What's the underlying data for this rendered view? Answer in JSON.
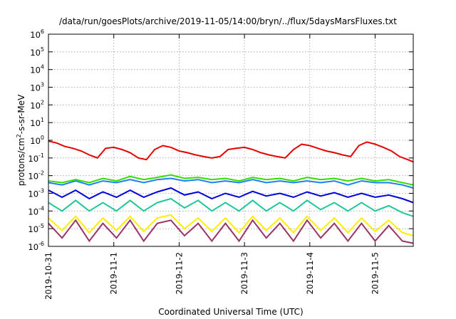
{
  "chart_data": {
    "type": "line",
    "title": "/data/run/goesPlots/archive/2019-11-05/14:00/bryn/../flux/5daysMarsFluxes.txt",
    "xlabel": "Coordinated Universal Time (UTC)",
    "ylabel": {
      "base": "protons/cm",
      "sup": "2",
      "rest": "-s-sr-MeV"
    },
    "y_scale": "log",
    "ylim": [
      1e-06,
      1000000.0
    ],
    "xlim": [
      "2019-10-31T00:00",
      "2019-11-05T14:00"
    ],
    "grid": true,
    "legend": "none",
    "x_ticks": [
      {
        "value": "2019-10-31",
        "label": "2019-10-31"
      },
      {
        "value": "2019-11-01",
        "label": "2019-11-1"
      },
      {
        "value": "2019-11-02",
        "label": "2019-11-2"
      },
      {
        "value": "2019-11-03",
        "label": "2019-11-3"
      },
      {
        "value": "2019-11-04",
        "label": "2019-11-4"
      },
      {
        "value": "2019-11-05",
        "label": "2019-11-5"
      }
    ],
    "y_ticks": [
      {
        "exp": -6,
        "base": "10",
        "sup": "-6"
      },
      {
        "exp": -5,
        "base": "10",
        "sup": "-5"
      },
      {
        "exp": -4,
        "base": "10",
        "sup": "-4"
      },
      {
        "exp": -3,
        "base": "10",
        "sup": "-3"
      },
      {
        "exp": -2,
        "base": "10",
        "sup": "-2"
      },
      {
        "exp": -1,
        "base": "10",
        "sup": "-1"
      },
      {
        "exp": 0,
        "base": "10",
        "sup": "0"
      },
      {
        "exp": 1,
        "base": "10",
        "sup": "1"
      },
      {
        "exp": 2,
        "base": "10",
        "sup": "2"
      },
      {
        "exp": 3,
        "base": "10",
        "sup": "3"
      },
      {
        "exp": 4,
        "base": "10",
        "sup": "4"
      },
      {
        "exp": 5,
        "base": "10",
        "sup": "5"
      },
      {
        "exp": 6,
        "base": "10",
        "sup": "6"
      }
    ],
    "series": [
      {
        "color": "#e50000",
        "x": [
          "2019-10-31T00:00",
          "2019-10-31T03:00",
          "2019-10-31T06:00",
          "2019-10-31T09:00",
          "2019-10-31T12:00",
          "2019-10-31T15:00",
          "2019-10-31T18:00",
          "2019-10-31T21:00",
          "2019-11-01T00:00",
          "2019-11-01T03:00",
          "2019-11-01T06:00",
          "2019-11-01T09:00",
          "2019-11-01T12:00",
          "2019-11-01T15:00",
          "2019-11-01T18:00",
          "2019-11-01T21:00",
          "2019-11-02T00:00",
          "2019-11-02T03:00",
          "2019-11-02T06:00",
          "2019-11-02T09:00",
          "2019-11-02T12:00",
          "2019-11-02T15:00",
          "2019-11-02T18:00",
          "2019-11-02T21:00",
          "2019-11-03T00:00",
          "2019-11-03T03:00",
          "2019-11-03T06:00",
          "2019-11-03T09:00",
          "2019-11-03T12:00",
          "2019-11-03T15:00",
          "2019-11-03T18:00",
          "2019-11-03T21:00",
          "2019-11-04T00:00",
          "2019-11-04T03:00",
          "2019-11-04T06:00",
          "2019-11-04T09:00",
          "2019-11-04T12:00",
          "2019-11-04T15:00",
          "2019-11-04T18:00",
          "2019-11-04T21:00",
          "2019-11-05T00:00",
          "2019-11-05T03:00",
          "2019-11-05T06:00",
          "2019-11-05T09:00",
          "2019-11-05T12:00",
          "2019-11-05T14:00"
        ],
        "y": [
          0.9,
          0.7,
          0.45,
          0.35,
          0.25,
          0.15,
          0.1,
          0.35,
          0.4,
          0.3,
          0.2,
          0.1,
          0.08,
          0.3,
          0.5,
          0.4,
          0.25,
          0.2,
          0.15,
          0.12,
          0.1,
          0.12,
          0.3,
          0.35,
          0.4,
          0.3,
          0.2,
          0.15,
          0.12,
          0.1,
          0.3,
          0.6,
          0.5,
          0.35,
          0.25,
          0.2,
          0.15,
          0.12,
          0.5,
          0.8,
          0.6,
          0.4,
          0.25,
          0.12,
          0.08,
          0.06
        ]
      },
      {
        "color": "#33dd00",
        "x": [
          "2019-10-31T00:00",
          "2019-10-31T05:00",
          "2019-10-31T10:00",
          "2019-10-31T15:00",
          "2019-10-31T20:00",
          "2019-11-01T01:00",
          "2019-11-01T06:00",
          "2019-11-01T11:00",
          "2019-11-01T16:00",
          "2019-11-01T21:00",
          "2019-11-02T02:00",
          "2019-11-02T07:00",
          "2019-11-02T12:00",
          "2019-11-02T17:00",
          "2019-11-02T22:00",
          "2019-11-03T03:00",
          "2019-11-03T08:00",
          "2019-11-03T13:00",
          "2019-11-03T18:00",
          "2019-11-03T23:00",
          "2019-11-04T04:00",
          "2019-11-04T09:00",
          "2019-11-04T14:00",
          "2019-11-04T19:00",
          "2019-11-05T00:00",
          "2019-11-05T05:00",
          "2019-11-05T10:00",
          "2019-11-05T14:00"
        ],
        "y": [
          0.005,
          0.004,
          0.006,
          0.004,
          0.007,
          0.005,
          0.009,
          0.006,
          0.008,
          0.011,
          0.007,
          0.008,
          0.006,
          0.007,
          0.005,
          0.008,
          0.006,
          0.007,
          0.005,
          0.008,
          0.006,
          0.007,
          0.005,
          0.007,
          0.005,
          0.006,
          0.004,
          0.003
        ]
      },
      {
        "color": "#1a7fff",
        "x": [
          "2019-10-31T00:00",
          "2019-10-31T05:00",
          "2019-10-31T10:00",
          "2019-10-31T15:00",
          "2019-10-31T20:00",
          "2019-11-01T01:00",
          "2019-11-01T06:00",
          "2019-11-01T11:00",
          "2019-11-01T16:00",
          "2019-11-01T21:00",
          "2019-11-02T02:00",
          "2019-11-02T07:00",
          "2019-11-02T12:00",
          "2019-11-02T17:00",
          "2019-11-02T22:00",
          "2019-11-03T03:00",
          "2019-11-03T08:00",
          "2019-11-03T13:00",
          "2019-11-03T18:00",
          "2019-11-03T23:00",
          "2019-11-04T04:00",
          "2019-11-04T09:00",
          "2019-11-04T14:00",
          "2019-11-04T19:00",
          "2019-11-05T00:00",
          "2019-11-05T05:00",
          "2019-11-05T10:00",
          "2019-11-05T14:00"
        ],
        "y": [
          0.004,
          0.003,
          0.005,
          0.003,
          0.005,
          0.004,
          0.006,
          0.004,
          0.006,
          0.007,
          0.005,
          0.006,
          0.004,
          0.005,
          0.004,
          0.006,
          0.004,
          0.005,
          0.004,
          0.005,
          0.004,
          0.005,
          0.003,
          0.005,
          0.004,
          0.004,
          0.003,
          0.002
        ]
      },
      {
        "color": "#0000dd",
        "x": [
          "2019-10-31T00:00",
          "2019-10-31T05:00",
          "2019-10-31T10:00",
          "2019-10-31T15:00",
          "2019-10-31T20:00",
          "2019-11-01T01:00",
          "2019-11-01T06:00",
          "2019-11-01T11:00",
          "2019-11-01T16:00",
          "2019-11-01T21:00",
          "2019-11-02T02:00",
          "2019-11-02T07:00",
          "2019-11-02T12:00",
          "2019-11-02T17:00",
          "2019-11-02T22:00",
          "2019-11-03T03:00",
          "2019-11-03T08:00",
          "2019-11-03T13:00",
          "2019-11-03T18:00",
          "2019-11-03T23:00",
          "2019-11-04T04:00",
          "2019-11-04T09:00",
          "2019-11-04T14:00",
          "2019-11-04T19:00",
          "2019-11-05T00:00",
          "2019-11-05T05:00",
          "2019-11-05T10:00",
          "2019-11-05T14:00"
        ],
        "y": [
          0.0015,
          0.0006,
          0.0015,
          0.0005,
          0.0012,
          0.0006,
          0.0015,
          0.0006,
          0.0012,
          0.002,
          0.0008,
          0.0012,
          0.0005,
          0.001,
          0.0006,
          0.0013,
          0.0007,
          0.001,
          0.0006,
          0.0012,
          0.0007,
          0.0011,
          0.0006,
          0.001,
          0.0006,
          0.0008,
          0.0005,
          0.0003
        ]
      },
      {
        "color": "#1ec79a",
        "x": [
          "2019-10-31T00:00",
          "2019-10-31T05:00",
          "2019-10-31T10:00",
          "2019-10-31T15:00",
          "2019-10-31T20:00",
          "2019-11-01T01:00",
          "2019-11-01T06:00",
          "2019-11-01T11:00",
          "2019-11-01T16:00",
          "2019-11-01T21:00",
          "2019-11-02T02:00",
          "2019-11-02T07:00",
          "2019-11-02T12:00",
          "2019-11-02T17:00",
          "2019-11-02T22:00",
          "2019-11-03T03:00",
          "2019-11-03T08:00",
          "2019-11-03T13:00",
          "2019-11-03T18:00",
          "2019-11-03T23:00",
          "2019-11-04T04:00",
          "2019-11-04T09:00",
          "2019-11-04T14:00",
          "2019-11-04T19:00",
          "2019-11-05T00:00",
          "2019-11-05T05:00",
          "2019-11-05T10:00",
          "2019-11-05T14:00"
        ],
        "y": [
          0.0003,
          0.0001,
          0.0004,
          0.0001,
          0.0003,
          0.0001,
          0.0004,
          0.0001,
          0.0003,
          0.0005,
          0.00015,
          0.0004,
          0.0001,
          0.0003,
          0.0001,
          0.0004,
          0.0001,
          0.0003,
          0.0001,
          0.0004,
          0.00012,
          0.0003,
          0.0001,
          0.0003,
          0.0001,
          0.0002,
          8e-05,
          5e-05
        ]
      },
      {
        "color": "#ffee00",
        "x": [
          "2019-10-31T00:00",
          "2019-10-31T05:00",
          "2019-10-31T10:00",
          "2019-10-31T15:00",
          "2019-10-31T20:00",
          "2019-11-01T01:00",
          "2019-11-01T06:00",
          "2019-11-01T11:00",
          "2019-11-01T16:00",
          "2019-11-01T21:00",
          "2019-11-02T02:00",
          "2019-11-02T07:00",
          "2019-11-02T12:00",
          "2019-11-02T17:00",
          "2019-11-02T22:00",
          "2019-11-03T03:00",
          "2019-11-03T08:00",
          "2019-11-03T13:00",
          "2019-11-03T18:00",
          "2019-11-03T23:00",
          "2019-11-04T04:00",
          "2019-11-04T09:00",
          "2019-11-04T14:00",
          "2019-11-04T19:00",
          "2019-11-05T00:00",
          "2019-11-05T05:00",
          "2019-11-05T10:00",
          "2019-11-05T14:00"
        ],
        "y": [
          4e-05,
          8e-06,
          5e-05,
          6e-06,
          4e-05,
          8e-06,
          5e-05,
          7e-06,
          4e-05,
          6e-05,
          1e-05,
          4e-05,
          7e-06,
          4e-05,
          6e-06,
          5e-05,
          8e-06,
          4e-05,
          6e-06,
          5e-05,
          8e-06,
          4e-05,
          6e-06,
          4e-05,
          7e-06,
          3e-05,
          6e-06,
          4e-06
        ]
      },
      {
        "color": "#993366",
        "x": [
          "2019-10-31T00:00",
          "2019-10-31T05:00",
          "2019-10-31T10:00",
          "2019-10-31T15:00",
          "2019-10-31T20:00",
          "2019-11-01T01:00",
          "2019-11-01T06:00",
          "2019-11-01T11:00",
          "2019-11-01T16:00",
          "2019-11-01T21:00",
          "2019-11-02T02:00",
          "2019-11-02T07:00",
          "2019-11-02T12:00",
          "2019-11-02T17:00",
          "2019-11-02T22:00",
          "2019-11-03T03:00",
          "2019-11-03T08:00",
          "2019-11-03T13:00",
          "2019-11-03T18:00",
          "2019-11-03T23:00",
          "2019-11-04T04:00",
          "2019-11-04T09:00",
          "2019-11-04T14:00",
          "2019-11-04T19:00",
          "2019-11-05T00:00",
          "2019-11-05T05:00",
          "2019-11-05T10:00",
          "2019-11-05T14:00"
        ],
        "y": [
          2e-05,
          3e-06,
          3e-05,
          2e-06,
          2e-05,
          3e-06,
          3e-05,
          2e-06,
          2e-05,
          3e-05,
          4e-06,
          2e-05,
          2e-06,
          2e-05,
          2e-06,
          3e-05,
          3e-06,
          2e-05,
          2e-06,
          3e-05,
          3e-06,
          2e-05,
          2e-06,
          2e-05,
          2e-06,
          1.5e-05,
          2e-06,
          1.5e-06
        ]
      }
    ]
  }
}
